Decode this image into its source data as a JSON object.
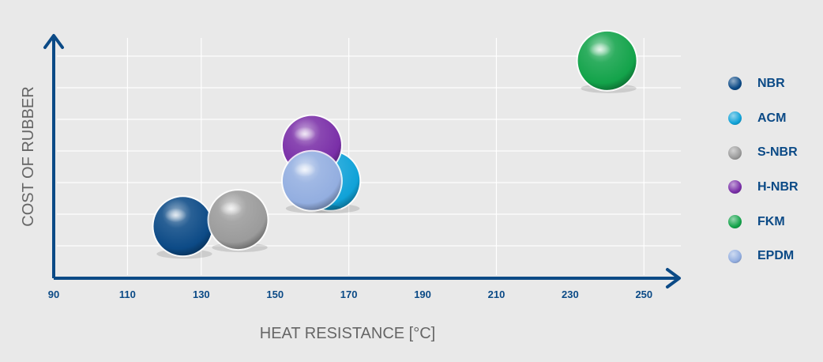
{
  "chart_data": {
    "type": "scatter",
    "xlabel": "HEAT RESISTANCE [°C]",
    "ylabel": "COST OF RUBBER",
    "xlim": [
      90,
      260
    ],
    "ylim": [
      0,
      7.5
    ],
    "x_ticks": [
      90,
      110,
      130,
      150,
      170,
      190,
      210,
      230,
      250
    ],
    "grid": true,
    "legend_position": "right",
    "series": [
      {
        "name": "NBR",
        "x": 125,
        "y": 1.6,
        "color": "#0c4a86"
      },
      {
        "name": "ACM",
        "x": 165,
        "y": 3.0,
        "color": "#10a2d8"
      },
      {
        "name": "S-NBR",
        "x": 140,
        "y": 1.8,
        "color": "#9b9b9b"
      },
      {
        "name": "H-NBR",
        "x": 160,
        "y": 4.1,
        "color": "#7a2fa8"
      },
      {
        "name": "FKM",
        "x": 240,
        "y": 6.7,
        "color": "#13a34a"
      },
      {
        "name": "EPDM",
        "x": 160,
        "y": 3.0,
        "color": "#93aee0"
      }
    ]
  },
  "colors": {
    "background": "#e9e9e9",
    "axis": "#0b4a86",
    "grid": "#ffffff",
    "axis_title": "#666666"
  }
}
